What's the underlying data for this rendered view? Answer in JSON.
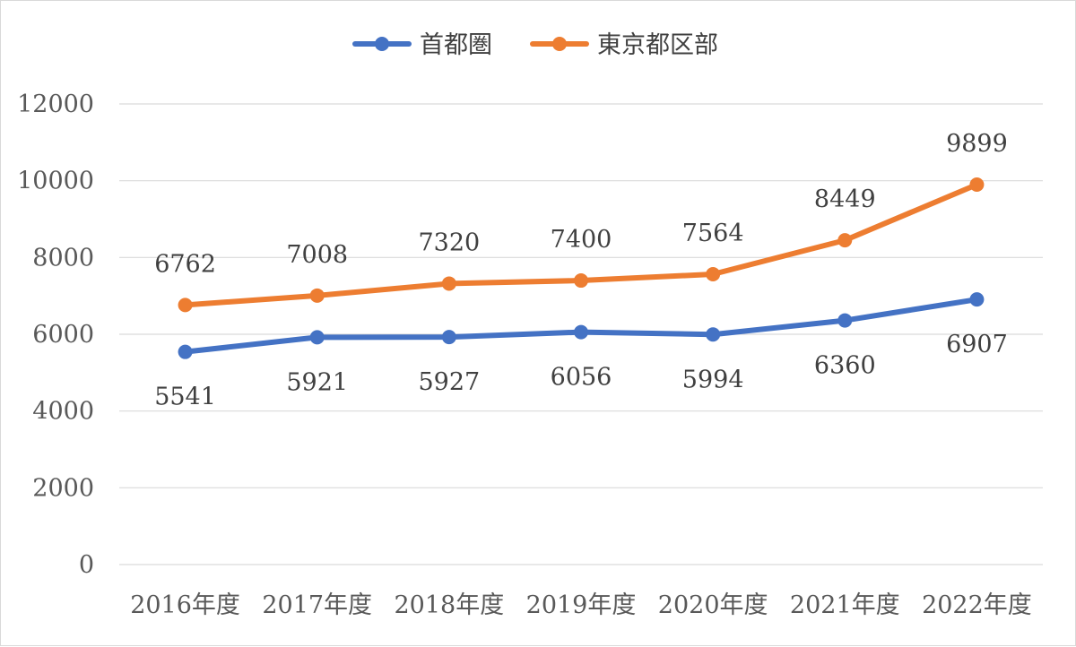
{
  "chart_data": {
    "type": "line",
    "categories": [
      "2016年度",
      "2017年度",
      "2018年度",
      "2019年度",
      "2020年度",
      "2021年度",
      "2022年度"
    ],
    "series": [
      {
        "name": "首都圏",
        "color": "#4472C4",
        "values": [
          5541,
          5921,
          5927,
          6056,
          5994,
          6360,
          6907
        ],
        "label_position": "below"
      },
      {
        "name": "東京都区部",
        "color": "#ED7D31",
        "values": [
          6762,
          7008,
          7320,
          7400,
          7564,
          8449,
          9899
        ],
        "label_position": "above"
      }
    ],
    "ylim": [
      0,
      12000
    ],
    "yticks": [
      0,
      2000,
      4000,
      6000,
      8000,
      10000,
      12000
    ],
    "grid": true,
    "legend_position": "top"
  }
}
